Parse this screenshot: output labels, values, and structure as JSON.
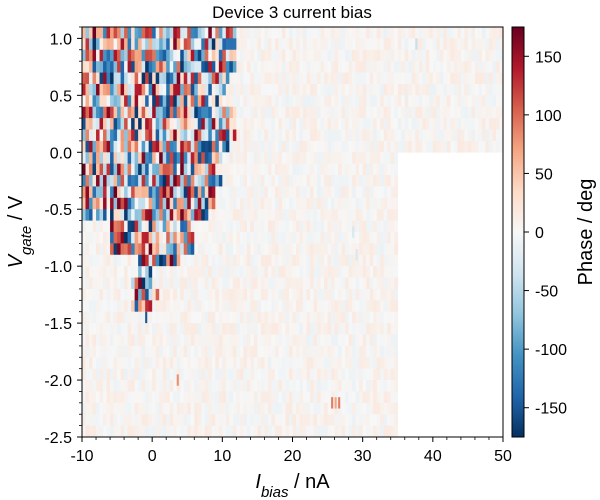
{
  "chart_data": {
    "type": "heatmap",
    "title": "Device 3 current bias",
    "xlabel": {
      "main": "I",
      "sub": "bias",
      "rest": " / nA"
    },
    "ylabel": {
      "main": "V",
      "sub": "gate",
      "rest": " / V"
    },
    "colorbar_label": "Phase / deg",
    "colormap": "RdBu_r",
    "xlim": [
      -10,
      50
    ],
    "ylim": [
      -2.5,
      1.1
    ],
    "clim": [
      -175,
      175
    ],
    "x_ticks": [
      -10,
      0,
      10,
      20,
      30,
      40,
      50
    ],
    "x_tick_labels": [
      "-10",
      "0",
      "10",
      "20",
      "30",
      "40",
      "50"
    ],
    "y_ticks": [
      -2.5,
      -2.0,
      -1.5,
      -1.0,
      -0.5,
      0.0,
      0.5,
      1.0
    ],
    "y_tick_labels": [
      "-2.5",
      "-2.0",
      "-1.5",
      "-1.0",
      "-0.5",
      "0.0",
      "0.5",
      "1.0"
    ],
    "colorbar_ticks": [
      -150,
      -100,
      -50,
      0,
      50,
      100,
      150
    ],
    "colorbar_tick_labels": [
      "-150",
      "-100",
      "-50",
      "0",
      "50",
      "100",
      "150"
    ],
    "x_step_nA": 0.5,
    "y_step_V": 0.1,
    "data_extent_x": [
      -10,
      35
    ],
    "data_extent_x_top_rows": [
      -10,
      50
    ],
    "top_rows_vgate_min": 0.1,
    "noisy_region_x_max_by_vgate": [
      {
        "vgate": 1.1,
        "x_max": 12
      },
      {
        "vgate": 1.0,
        "x_max": 12
      },
      {
        "vgate": 0.9,
        "x_max": 12
      },
      {
        "vgate": 0.8,
        "x_max": 12
      },
      {
        "vgate": 0.7,
        "x_max": 11
      },
      {
        "vgate": 0.6,
        "x_max": 11
      },
      {
        "vgate": 0.5,
        "x_max": 10
      },
      {
        "vgate": 0.4,
        "x_max": 12
      },
      {
        "vgate": 0.3,
        "x_max": 12
      },
      {
        "vgate": 0.2,
        "x_max": 12
      },
      {
        "vgate": 0.1,
        "x_max": 11
      },
      {
        "vgate": 0.0,
        "x_max": 10
      },
      {
        "vgate": -0.1,
        "x_max": 9
      },
      {
        "vgate": -0.2,
        "x_max": 10
      },
      {
        "vgate": -0.3,
        "x_max": 9
      },
      {
        "vgate": -0.4,
        "x_max": 9
      },
      {
        "vgate": -0.5,
        "x_max": 8
      },
      {
        "vgate": -0.6,
        "x_max": 6
      },
      {
        "vgate": -0.7,
        "x_max": 6
      },
      {
        "vgate": -0.8,
        "x_max": 6
      },
      {
        "vgate": -0.9,
        "x_max": 4
      },
      {
        "vgate": -1.0,
        "x_max": 0
      },
      {
        "vgate": -1.1,
        "x_max": 0
      },
      {
        "vgate": -1.2,
        "x_max": 1
      },
      {
        "vgate": -1.3,
        "x_max": 0
      }
    ],
    "noisy_region_x_min_by_vgate": [
      {
        "vgate": -0.6,
        "x_min": -6
      },
      {
        "vgate": -0.7,
        "x_min": -6
      },
      {
        "vgate": -0.8,
        "x_min": -6
      },
      {
        "vgate": -0.9,
        "x_min": -2
      },
      {
        "vgate": -1.0,
        "x_min": -2
      },
      {
        "vgate": -1.1,
        "x_min": -3
      },
      {
        "vgate": -1.2,
        "x_min": -3
      },
      {
        "vgate": -1.3,
        "x_min": -3
      }
    ],
    "isolated_features": [
      {
        "x": -1,
        "vgate": -1.45,
        "phase": -150
      },
      {
        "x": 3.5,
        "vgate": -2.0,
        "phase": 80
      },
      {
        "x": 25.5,
        "vgate": -2.2,
        "phase": 90
      },
      {
        "x": 26.0,
        "vgate": -2.2,
        "phase": 70
      },
      {
        "x": 26.5,
        "vgate": -2.2,
        "phase": 90
      },
      {
        "x": 28.5,
        "vgate": -0.7,
        "phase": -30
      },
      {
        "x": 29.0,
        "vgate": -0.9,
        "phase": -30
      },
      {
        "x": 37.5,
        "vgate": 0.95,
        "phase": -40
      },
      {
        "x": 36.0,
        "vgate": 0.5,
        "phase": -15
      },
      {
        "x": 32.5,
        "vgate": -0.2,
        "phase": -10
      }
    ]
  }
}
